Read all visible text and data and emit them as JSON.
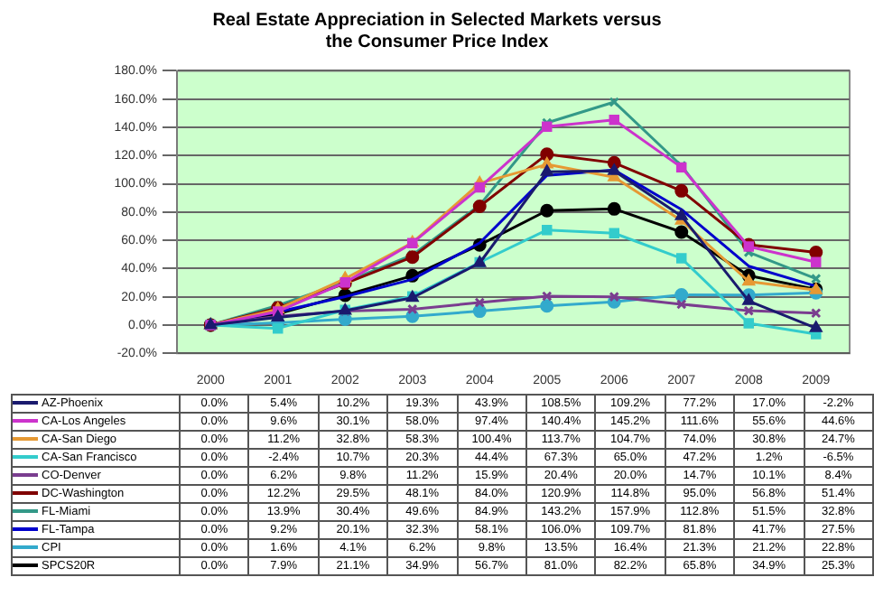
{
  "chart_data": {
    "type": "line",
    "title": "Real Estate Appreciation in Selected Markets versus the Consumer Price Index",
    "categories": [
      "2000",
      "2001",
      "2002",
      "2003",
      "2004",
      "2005",
      "2006",
      "2007",
      "2008",
      "2009"
    ],
    "ylim": [
      -20,
      180
    ],
    "yticks": [
      {
        "value": -20,
        "label": "-20.0%"
      },
      {
        "value": 0,
        "label": "0.0%"
      },
      {
        "value": 20,
        "label": "20.0%"
      },
      {
        "value": 40,
        "label": "40.0%"
      },
      {
        "value": 60,
        "label": "60.0%"
      },
      {
        "value": 80,
        "label": "80.0%"
      },
      {
        "value": 100,
        "label": "100.0%"
      },
      {
        "value": 120,
        "label": "120.0%"
      },
      {
        "value": 140,
        "label": "140.0%"
      },
      {
        "value": 160,
        "label": "160.0%"
      },
      {
        "value": 180,
        "label": "180.0%"
      }
    ],
    "grid": "y",
    "legend": "bottom",
    "series": [
      {
        "name": "AZ-Phoenix",
        "color": "#1a1a6e",
        "marker": "triangle",
        "values": [
          0,
          5.4,
          10.2,
          19.3,
          43.9,
          108.5,
          109.2,
          77.2,
          17.0,
          -2.2
        ],
        "value_labels": [
          "0.0%",
          "5.4%",
          "10.2%",
          "19.3%",
          "43.9%",
          "108.5%",
          "109.2%",
          "77.2%",
          "17.0%",
          "-2.2%"
        ]
      },
      {
        "name": "CA-Los Angeles",
        "color": "#cc33cc",
        "marker": "square",
        "values": [
          0,
          9.6,
          30.1,
          58.0,
          97.4,
          140.4,
          145.2,
          111.6,
          55.6,
          44.6
        ],
        "value_labels": [
          "0.0%",
          "9.6%",
          "30.1%",
          "58.0%",
          "97.4%",
          "140.4%",
          "145.2%",
          "111.6%",
          "55.6%",
          "44.6%"
        ]
      },
      {
        "name": "CA-San Diego",
        "color": "#e69933",
        "marker": "triangle",
        "values": [
          0,
          11.2,
          32.8,
          58.3,
          100.4,
          113.7,
          104.7,
          74.0,
          30.8,
          24.7
        ],
        "value_labels": [
          "0.0%",
          "11.2%",
          "32.8%",
          "58.3%",
          "100.4%",
          "113.7%",
          "104.7%",
          "74.0%",
          "30.8%",
          "24.7%"
        ]
      },
      {
        "name": "CA-San Francisco",
        "color": "#33cccc",
        "marker": "square",
        "values": [
          0,
          -2.4,
          10.7,
          20.3,
          44.4,
          67.3,
          65.0,
          47.2,
          1.2,
          -6.5
        ],
        "value_labels": [
          "0.0%",
          "-2.4%",
          "10.7%",
          "20.3%",
          "44.4%",
          "67.3%",
          "65.0%",
          "47.2%",
          "1.2%",
          "-6.5%"
        ]
      },
      {
        "name": "CO-Denver",
        "color": "#7a3d8f",
        "marker": "cross",
        "values": [
          0,
          6.2,
          9.8,
          11.2,
          15.9,
          20.4,
          20.0,
          14.7,
          10.1,
          8.4
        ],
        "value_labels": [
          "0.0%",
          "6.2%",
          "9.8%",
          "11.2%",
          "15.9%",
          "20.4%",
          "20.0%",
          "14.7%",
          "10.1%",
          "8.4%"
        ]
      },
      {
        "name": "DC-Washington",
        "color": "#800000",
        "marker": "circle",
        "values": [
          0,
          12.2,
          29.5,
          48.1,
          84.0,
          120.9,
          114.8,
          95.0,
          56.8,
          51.4
        ],
        "value_labels": [
          "0.0%",
          "12.2%",
          "29.5%",
          "48.1%",
          "84.0%",
          "120.9%",
          "114.8%",
          "95.0%",
          "56.8%",
          "51.4%"
        ]
      },
      {
        "name": "FL-Miami",
        "color": "#339988",
        "marker": "cross",
        "values": [
          0,
          13.9,
          30.4,
          49.6,
          84.9,
          143.2,
          157.9,
          112.8,
          51.5,
          32.8
        ],
        "value_labels": [
          "0.0%",
          "13.9%",
          "30.4%",
          "49.6%",
          "84.9%",
          "143.2%",
          "157.9%",
          "112.8%",
          "51.5%",
          "32.8%"
        ]
      },
      {
        "name": "FL-Tampa",
        "color": "#0000cc",
        "marker": "none",
        "values": [
          0,
          9.2,
          20.1,
          32.3,
          58.1,
          106.0,
          109.7,
          81.8,
          41.7,
          27.5
        ],
        "value_labels": [
          "0.0%",
          "9.2%",
          "20.1%",
          "32.3%",
          "58.1%",
          "106.0%",
          "109.7%",
          "81.8%",
          "41.7%",
          "27.5%"
        ]
      },
      {
        "name": "CPI",
        "color": "#33aacc",
        "marker": "circle",
        "values": [
          0,
          1.6,
          4.1,
          6.2,
          9.8,
          13.5,
          16.4,
          21.3,
          21.2,
          22.8
        ],
        "value_labels": [
          "0.0%",
          "1.6%",
          "4.1%",
          "6.2%",
          "9.8%",
          "13.5%",
          "16.4%",
          "21.3%",
          "21.2%",
          "22.8%"
        ]
      },
      {
        "name": "SPCS20R",
        "color": "#000000",
        "marker": "circle",
        "values": [
          0,
          7.9,
          21.1,
          34.9,
          56.7,
          81.0,
          82.2,
          65.8,
          34.9,
          25.3
        ],
        "value_labels": [
          "0.0%",
          "7.9%",
          "21.1%",
          "34.9%",
          "56.7%",
          "81.0%",
          "82.2%",
          "65.8%",
          "34.9%",
          "25.3%"
        ]
      }
    ]
  }
}
